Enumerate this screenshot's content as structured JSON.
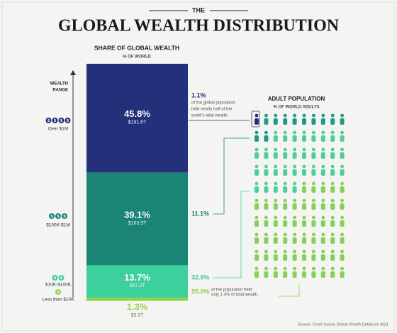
{
  "chart_data": {
    "type": "stacked_bar",
    "pretitle": "THE",
    "title": "GLOBAL WEALTH DISTRIBUTION",
    "bar_title": "SHARE OF GLOBAL WEALTH",
    "bar_subtitle": "% OF WORLD",
    "range_label": [
      "WEALTH",
      "RANGE"
    ],
    "pop_title": "ADULT POPULATION",
    "pop_subtitle": "% OF WORLD ADULTS",
    "coin": "$",
    "ylim": [
      0,
      100
    ],
    "source": "Source: Credit Suisse Global Wealth Databook 2021",
    "series": [
      {
        "name": "Over $1M",
        "color": "#24307a",
        "icon_color": "#24307a",
        "coins": 4,
        "values": [
          45.8
        ],
        "value_labels": [
          "45.8%"
        ],
        "wealth_label": "$191.6T",
        "population": 1.1,
        "population_label": "1.1%",
        "note": [
          "of the global population",
          "held nearly half of the",
          "world's total wealth."
        ]
      },
      {
        "name": "$100K-$1M",
        "color": "#1a8577",
        "icon_color": "#1f9a86",
        "coins": 3,
        "values": [
          39.1
        ],
        "value_labels": [
          "39.1%"
        ],
        "wealth_label": "$163.9T",
        "population": 11.1,
        "population_label": "11.1%"
      },
      {
        "name": "$10K-$100K",
        "color": "#3dcf9c",
        "icon_color": "#4fcf96",
        "coins": 2,
        "values": [
          13.7
        ],
        "value_labels": [
          "13.7%"
        ],
        "wealth_label": "$57.3T",
        "population": 32.8,
        "population_label": "32.8%"
      },
      {
        "name": "Less than $10K",
        "color": "#8ed44a",
        "icon_color": "#86cf5a",
        "coins": 1,
        "values": [
          1.3
        ],
        "value_labels": [
          "1.3%"
        ],
        "wealth_label": "$5.5T",
        "population": 55.0,
        "population_label": "55.0%",
        "note": [
          "of the population held",
          "only 1.3% of total wealth."
        ]
      }
    ]
  }
}
